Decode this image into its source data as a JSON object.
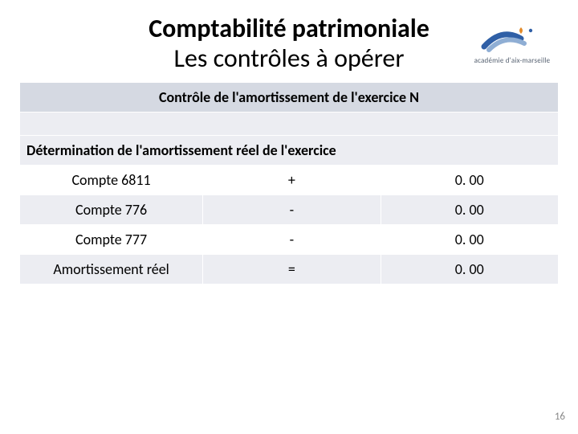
{
  "title": {
    "line1": "Comptabilité patrimoniale",
    "line2": "Les contrôles à opérer"
  },
  "logo": {
    "caption": "académie d'aix-marseille",
    "colors": {
      "swoosh1": "#2f5fa6",
      "swoosh2": "#8faed4",
      "accent": "#e38b2a"
    }
  },
  "table": {
    "header": "Contrôle de l'amortissement de l'exercice N",
    "subheader": "Détermination de l'amortissement réel de l'exercice",
    "col_widths": [
      "34%",
      "33%",
      "33%"
    ],
    "rows": [
      {
        "label": "Compte 6811",
        "op": "+",
        "value": "0. 00",
        "alt": false
      },
      {
        "label": "Compte 776",
        "op": "-",
        "value": "0. 00",
        "alt": true
      },
      {
        "label": "Compte 777",
        "op": "-",
        "value": "0. 00",
        "alt": false
      },
      {
        "label": "Amortissement réel",
        "op": "=",
        "value": "0. 00",
        "alt": true
      }
    ]
  },
  "page_number": "16",
  "colors": {
    "header_bg": "#d5d9e2",
    "alt_bg": "#ecedf2",
    "row_bg": "#ffffff",
    "text": "#000000"
  }
}
